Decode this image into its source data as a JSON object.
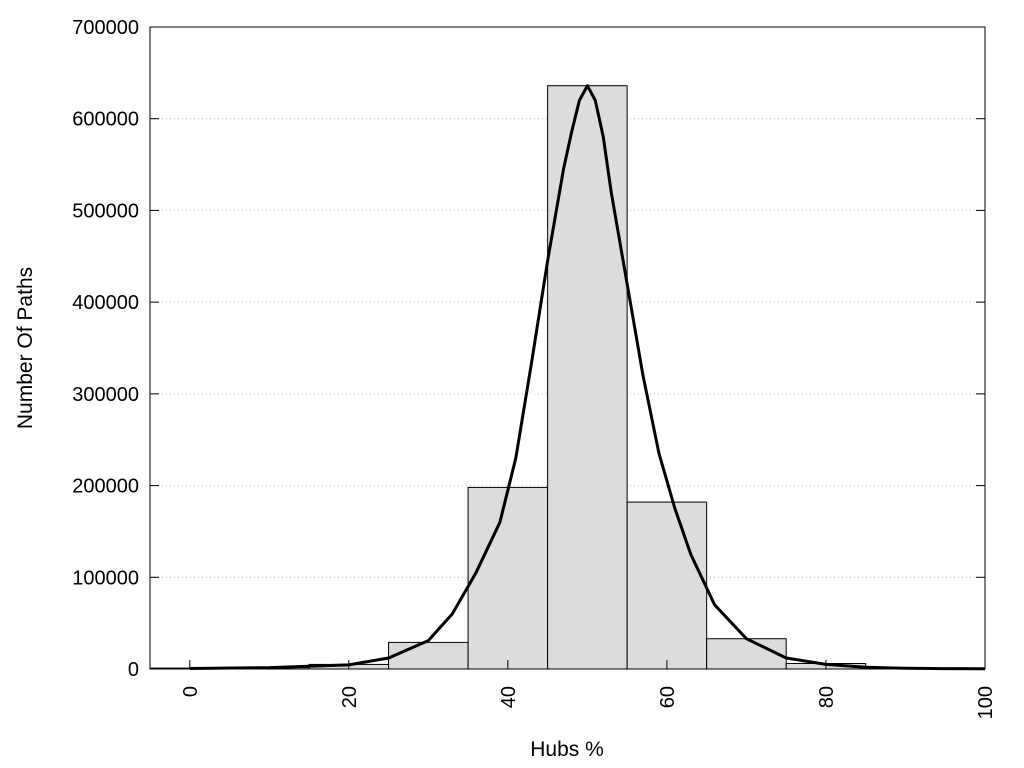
{
  "chart_data": {
    "type": "bar",
    "title": "",
    "xlabel": "Hubs %",
    "ylabel": "Number Of Paths",
    "xlim": [
      -5,
      100
    ],
    "ylim": [
      0,
      700000
    ],
    "xticks": [
      "0",
      "20",
      "40",
      "60",
      "80",
      "100"
    ],
    "yticks": [
      "0",
      "100000",
      "200000",
      "300000",
      "400000",
      "500000",
      "600000",
      "700000"
    ],
    "grid": "horizontal dotted",
    "bar_color": "#dcdcdc",
    "bars": [
      {
        "x0": -5,
        "x1": 5,
        "value": 1000
      },
      {
        "x0": 5,
        "x1": 15,
        "value": 1500
      },
      {
        "x0": 15,
        "x1": 25,
        "value": 5000
      },
      {
        "x0": 25,
        "x1": 35,
        "value": 29000
      },
      {
        "x0": 35,
        "x1": 45,
        "value": 198000
      },
      {
        "x0": 45,
        "x1": 55,
        "value": 636000
      },
      {
        "x0": 55,
        "x1": 65,
        "value": 182000
      },
      {
        "x0": 65,
        "x1": 75,
        "value": 33000
      },
      {
        "x0": 75,
        "x1": 85,
        "value": 6000
      },
      {
        "x0": 85,
        "x1": 95,
        "value": 1000
      },
      {
        "x0": 95,
        "x1": 100,
        "value": 500
      }
    ],
    "curve": {
      "x": [
        0,
        10,
        20,
        25,
        30,
        33,
        36,
        39,
        41,
        43,
        45,
        47,
        48,
        49,
        50,
        51,
        52,
        53,
        55,
        57,
        59,
        61,
        63,
        66,
        70,
        75,
        80,
        85,
        90,
        95,
        100
      ],
      "y": [
        500,
        1500,
        4500,
        12000,
        31000,
        60000,
        105000,
        160000,
        230000,
        335000,
        445000,
        545000,
        585000,
        620000,
        636000,
        620000,
        580000,
        520000,
        420000,
        320000,
        235000,
        175000,
        125000,
        70000,
        33000,
        12000,
        5000,
        2000,
        800,
        400,
        200
      ]
    }
  }
}
